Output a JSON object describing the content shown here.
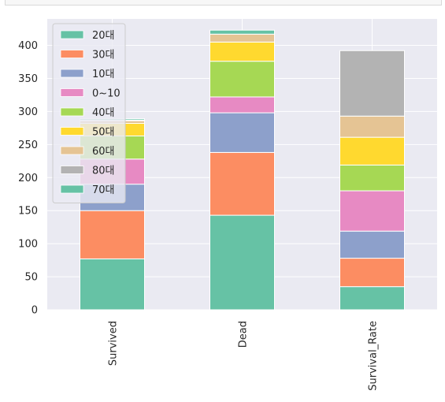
{
  "chart_data": {
    "type": "bar",
    "stacked": true,
    "categories": [
      "Survived",
      "Dead",
      "Survival_Rate"
    ],
    "series": [
      {
        "name": "20대",
        "values": [
          77,
          143,
          35
        ]
      },
      {
        "name": "30대",
        "values": [
          73,
          95,
          43
        ]
      },
      {
        "name": "10대",
        "values": [
          40,
          60,
          41
        ]
      },
      {
        "name": "0~10",
        "values": [
          38,
          24,
          61
        ]
      },
      {
        "name": "40대",
        "values": [
          35,
          54,
          39
        ]
      },
      {
        "name": "50대",
        "values": [
          19,
          29,
          42
        ]
      },
      {
        "name": "60대",
        "values": [
          4,
          12,
          32
        ]
      },
      {
        "name": "80대",
        "values": [
          1,
          0,
          99
        ]
      },
      {
        "name": "70대",
        "values": [
          2,
          6,
          0
        ]
      }
    ],
    "colors": [
      "#66c2a5",
      "#fc8d62",
      "#8da0cb",
      "#e78ac3",
      "#a6d854",
      "#ffd92f",
      "#e5c494",
      "#b3b3b3",
      "#66c2a5"
    ],
    "ylim": [
      0,
      440
    ],
    "yticks": [
      0,
      50,
      100,
      150,
      200,
      250,
      300,
      350,
      400
    ],
    "grid": true,
    "legend": "top-left",
    "background": "#eaeaf2"
  }
}
